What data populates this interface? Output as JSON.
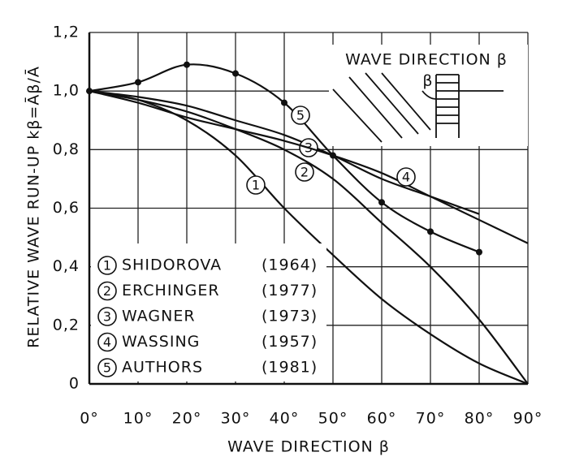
{
  "chart_data": {
    "type": "line",
    "y_label": "RELATIVE WAVE RUN-UP kβ=Āβ/Ā",
    "x_label": "WAVE DIRECTION β",
    "inset_title": "WAVE DIRECTION β",
    "inset_symbol": "β",
    "x": [
      0,
      10,
      20,
      30,
      40,
      50,
      60,
      70,
      80,
      90
    ],
    "xlim": [
      0,
      90
    ],
    "ylim": [
      0,
      1.2
    ],
    "xticks": [
      {
        "value": 0,
        "label": "0°"
      },
      {
        "value": 10,
        "label": "10°"
      },
      {
        "value": 20,
        "label": "20°"
      },
      {
        "value": 30,
        "label": "30°"
      },
      {
        "value": 40,
        "label": "40°"
      },
      {
        "value": 50,
        "label": "50°"
      },
      {
        "value": 60,
        "label": "60°"
      },
      {
        "value": 70,
        "label": "70°"
      },
      {
        "value": 80,
        "label": "80°"
      },
      {
        "value": 90,
        "label": "90°"
      }
    ],
    "yticks": [
      0,
      {
        "value": 0.2,
        "label": "0,2"
      },
      {
        "value": 0.4,
        "label": "0,4"
      },
      {
        "value": 0.6,
        "label": "0,6"
      },
      {
        "value": 0.8,
        "label": "0,8"
      },
      {
        "value": 1.0,
        "label": "1,0"
      },
      {
        "value": 1.2,
        "label": "1,2"
      }
    ],
    "grid": true,
    "series": [
      {
        "label": "1",
        "name": "SHIDOROVA",
        "year": "(1964)",
        "color": "#111111",
        "values": [
          1.0,
          0.97,
          0.9,
          0.78,
          0.6,
          0.44,
          0.29,
          0.17,
          0.07,
          0
        ]
      },
      {
        "label": "2",
        "name": "ERCHINGER",
        "year": "(1977)",
        "color": "#111111",
        "values": [
          1.0,
          0.97,
          0.93,
          0.87,
          0.8,
          0.7,
          0.55,
          0.4,
          0.22,
          0
        ]
      },
      {
        "label": "3",
        "name": "WAGNER",
        "year": "(1973)",
        "color": "#111111",
        "values": [
          1.0,
          0.98,
          0.95,
          0.9,
          0.85,
          0.78,
          0.7,
          0.64,
          0.58,
          null
        ]
      },
      {
        "label": "4",
        "name": "WASSING",
        "year": "(1957)",
        "color": "#111111",
        "values": [
          1.0,
          0.96,
          0.91,
          0.87,
          0.83,
          0.78,
          0.72,
          0.64,
          0.56,
          0.48
        ]
      },
      {
        "label": "5",
        "name": "AUTHORS",
        "year": "(1981)",
        "color": "#111111",
        "markers": true,
        "values": [
          1.0,
          1.03,
          1.09,
          1.06,
          0.96,
          0.78,
          0.62,
          0.52,
          0.45,
          null
        ]
      }
    ]
  }
}
